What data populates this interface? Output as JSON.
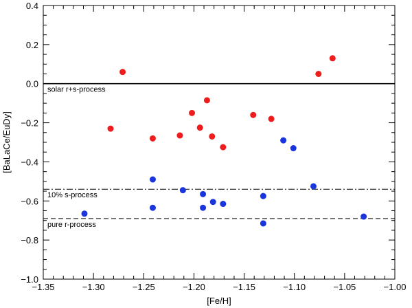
{
  "chart_data": {
    "type": "scatter",
    "xlabel": "[Fe/H]",
    "ylabel": "[BaLaCe/EuDy]",
    "xlim": [
      -1.35,
      -1.0
    ],
    "ylim": [
      -1.0,
      0.4
    ],
    "x_major_ticks": [
      -1.35,
      -1.3,
      -1.25,
      -1.2,
      -1.15,
      -1.1,
      -1.05,
      -1.0
    ],
    "x_tick_labels": [
      "−1.35",
      "−1.30",
      "−1.25",
      "−1.20",
      "−1.15",
      "−1.10",
      "−1.05",
      "−1.00"
    ],
    "y_major_ticks": [
      -1.0,
      -0.8,
      -0.6,
      -0.4,
      -0.2,
      0.0,
      0.2,
      0.4
    ],
    "y_tick_labels": [
      "−1.0",
      "−0.8",
      "−0.6",
      "−0.4",
      "−0.2",
      "0.0",
      "0.2",
      "0.4"
    ],
    "grid": false,
    "series": [
      {
        "color": "#ee1c1c",
        "points": [
          [
            -1.283,
            -0.23
          ],
          [
            -1.271,
            0.06
          ],
          [
            -1.241,
            -0.28
          ],
          [
            -1.214,
            -0.265
          ],
          [
            -1.202,
            -0.15
          ],
          [
            -1.194,
            -0.225
          ],
          [
            -1.187,
            -0.085
          ],
          [
            -1.182,
            -0.27
          ],
          [
            -1.171,
            -0.325
          ],
          [
            -1.141,
            -0.16
          ],
          [
            -1.123,
            -0.18
          ],
          [
            -1.076,
            0.05
          ],
          [
            -1.062,
            0.13
          ]
        ]
      },
      {
        "color": "#1a35dd",
        "points": [
          [
            -1.309,
            -0.665
          ],
          [
            -1.241,
            -0.49
          ],
          [
            -1.241,
            -0.635
          ],
          [
            -1.211,
            -0.545
          ],
          [
            -1.191,
            -0.565
          ],
          [
            -1.191,
            -0.635
          ],
          [
            -1.181,
            -0.605
          ],
          [
            -1.171,
            -0.615
          ],
          [
            -1.131,
            -0.575
          ],
          [
            -1.131,
            -0.715
          ],
          [
            -1.111,
            -0.29
          ],
          [
            -1.101,
            -0.33
          ],
          [
            -1.081,
            -0.525
          ],
          [
            -1.031,
            -0.68
          ]
        ]
      }
    ],
    "reference_lines": [
      {
        "y": 0.0,
        "style": "solid",
        "label": "solar r+s-process"
      },
      {
        "y": -0.54,
        "style": "dashdot",
        "label": "10% s-process"
      },
      {
        "y": -0.69,
        "style": "dashed",
        "label": "pure r-process"
      }
    ]
  }
}
